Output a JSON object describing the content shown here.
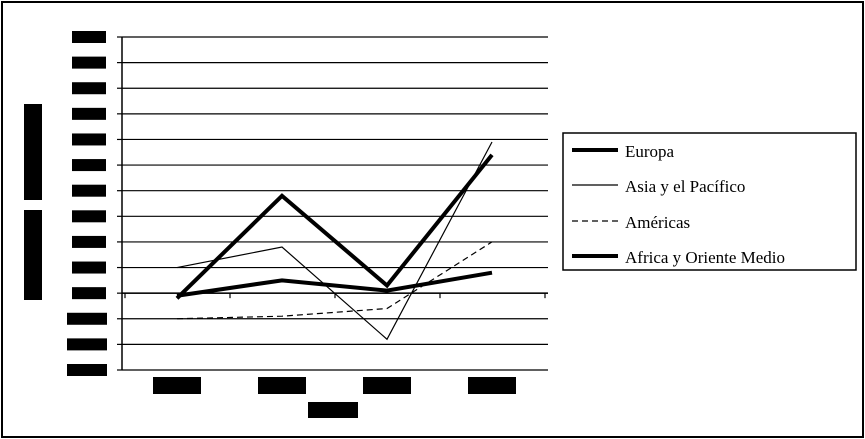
{
  "chart_data": {
    "type": "line",
    "title": "",
    "xlabel": "",
    "ylabel": "",
    "categories": [
      "",
      "",
      "",
      ""
    ],
    "ylim": [
      -3,
      10
    ],
    "grid": true,
    "legend_position": "right",
    "series": [
      {
        "name": "Europa",
        "values": [
          -0.2,
          3.8,
          0.3,
          5.4
        ],
        "line_style": "thick",
        "color": "#000000"
      },
      {
        "name": "Asia y el Pacífico",
        "values": [
          1.0,
          1.8,
          -1.8,
          5.9
        ],
        "line_style": "thin",
        "color": "#000000"
      },
      {
        "name": "Américas",
        "values": [
          -1.0,
          -0.9,
          -0.6,
          2.0
        ],
        "line_style": "dashed",
        "color": "#000000"
      },
      {
        "name": "Africa y Oriente Medio",
        "values": [
          -0.1,
          0.5,
          0.1,
          0.8
        ],
        "line_style": "thick",
        "color": "#000000"
      }
    ]
  }
}
